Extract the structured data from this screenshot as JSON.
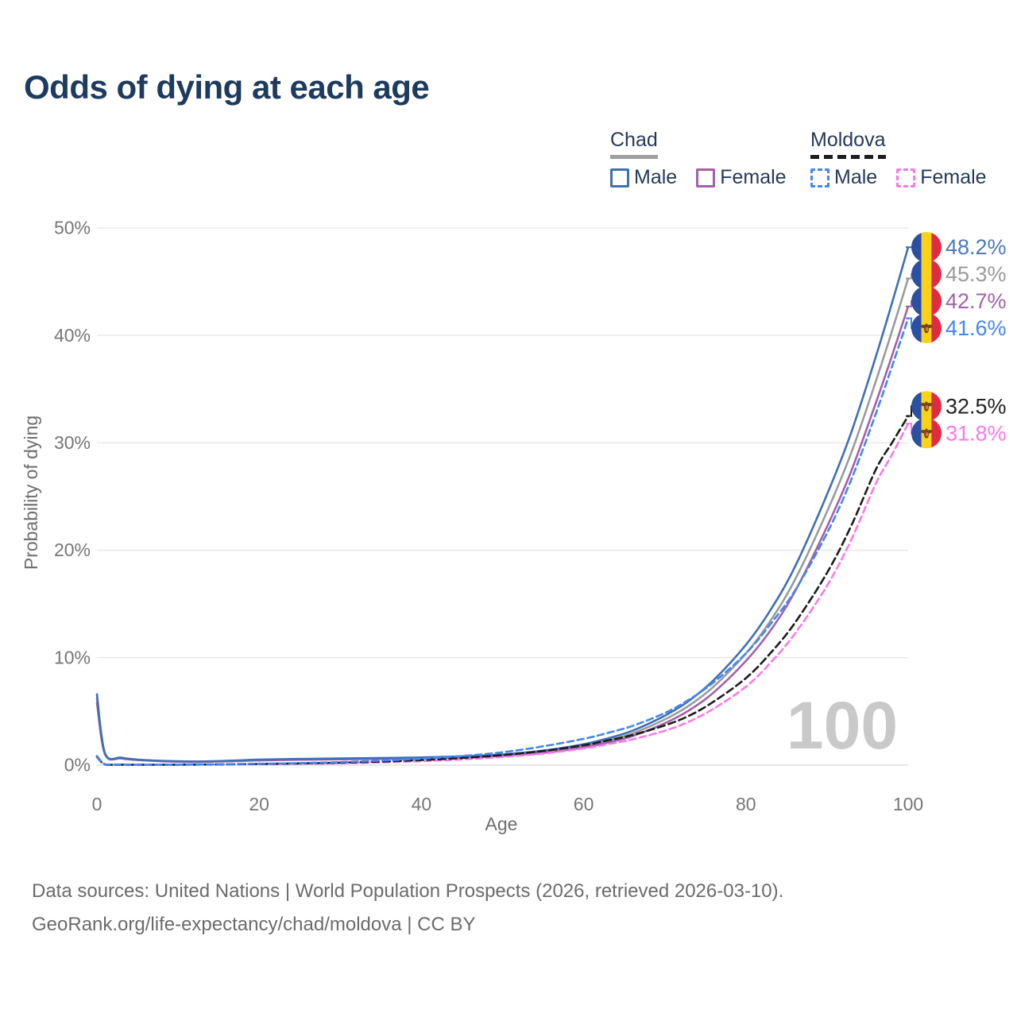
{
  "title": "Odds of dying at each age",
  "watermark": "100",
  "legend": {
    "groups": [
      {
        "label": "Chad",
        "underline": {
          "color": "#9e9e9e",
          "style": "solid"
        },
        "items": [
          {
            "label": "Male",
            "color": "#3f6fb5",
            "line_style": "solid"
          },
          {
            "label": "Female",
            "color": "#a261aa",
            "line_style": "solid"
          }
        ]
      },
      {
        "label": "Moldova",
        "underline": {
          "color": "#1c1c1c",
          "style": "dashed"
        },
        "items": [
          {
            "label": "Male",
            "color": "#4386f0",
            "line_style": "dashed"
          },
          {
            "label": "Female",
            "color": "#fa78ea",
            "line_style": "dashed"
          }
        ]
      }
    ]
  },
  "axes": {
    "y_title": "Probability of dying",
    "x_title": "Age"
  },
  "footer": {
    "line1": "Data sources: United Nations | World Population Prospects (2026, retrieved 2026-03-10).",
    "line2": "GeoRank.org/life-expectancy/chad/moldova | CC BY"
  },
  "chart_data": {
    "type": "line",
    "title": "Odds of dying at each age",
    "xlabel": "Age",
    "ylabel": "Probability of dying",
    "xlim": [
      0,
      100
    ],
    "ylim": [
      0,
      50
    ],
    "xticks": [
      0,
      20,
      40,
      60,
      80,
      100
    ],
    "xtick_labels": [
      "0",
      "20",
      "40",
      "60",
      "80",
      "100"
    ],
    "yticks": [
      0,
      10,
      20,
      30,
      40,
      50
    ],
    "ytick_labels": [
      "0%",
      "10%",
      "20%",
      "30%",
      "40%",
      "50%"
    ],
    "grid": "horizontal-only",
    "legend_position": "top-right",
    "series": [
      {
        "id": "chad-all",
        "country": "Chad",
        "sex": "both",
        "name": "Chad — Both sexes",
        "color": "#9b9b9b",
        "line_style": "solid",
        "end_label": {
          "text": "45.3%",
          "color": "#9b9b9b",
          "flag": "chad"
        },
        "points": [
          [
            0,
            6.2
          ],
          [
            1,
            1.05
          ],
          [
            3,
            0.66
          ],
          [
            5,
            0.5
          ],
          [
            8,
            0.38
          ],
          [
            10,
            0.34
          ],
          [
            12,
            0.32
          ],
          [
            15,
            0.36
          ],
          [
            18,
            0.43
          ],
          [
            20,
            0.48
          ],
          [
            25,
            0.54
          ],
          [
            30,
            0.58
          ],
          [
            35,
            0.62
          ],
          [
            40,
            0.68
          ],
          [
            45,
            0.77
          ],
          [
            50,
            0.93
          ],
          [
            55,
            1.25
          ],
          [
            60,
            1.8
          ],
          [
            63,
            2.3
          ],
          [
            66,
            2.95
          ],
          [
            70,
            4.25
          ],
          [
            73,
            5.55
          ],
          [
            76,
            7.3
          ],
          [
            80,
            10.4
          ],
          [
            83,
            13.4
          ],
          [
            86,
            17.2
          ],
          [
            90,
            23.6
          ],
          [
            93,
            29.1
          ],
          [
            96,
            35.7
          ],
          [
            98,
            40.4
          ],
          [
            100,
            45.3
          ]
        ]
      },
      {
        "id": "chad-female",
        "country": "Chad",
        "sex": "female",
        "name": "Chad — Female",
        "color": "#a261aa",
        "line_style": "solid",
        "end_label": {
          "text": "42.7%",
          "color": "#a261aa",
          "flag": "chad"
        },
        "points": [
          [
            0,
            5.8
          ],
          [
            1,
            1.0
          ],
          [
            3,
            0.62
          ],
          [
            5,
            0.47
          ],
          [
            8,
            0.36
          ],
          [
            10,
            0.32
          ],
          [
            12,
            0.3
          ],
          [
            15,
            0.33
          ],
          [
            18,
            0.39
          ],
          [
            20,
            0.44
          ],
          [
            25,
            0.5
          ],
          [
            30,
            0.54
          ],
          [
            35,
            0.58
          ],
          [
            40,
            0.64
          ],
          [
            45,
            0.72
          ],
          [
            50,
            0.87
          ],
          [
            55,
            1.15
          ],
          [
            60,
            1.65
          ],
          [
            63,
            2.1
          ],
          [
            66,
            2.7
          ],
          [
            70,
            3.9
          ],
          [
            73,
            5.1
          ],
          [
            76,
            6.75
          ],
          [
            80,
            9.7
          ],
          [
            83,
            12.5
          ],
          [
            86,
            16.1
          ],
          [
            90,
            22.2
          ],
          [
            93,
            27.4
          ],
          [
            96,
            33.7
          ],
          [
            98,
            38.1
          ],
          [
            100,
            42.7
          ]
        ]
      },
      {
        "id": "chad-male",
        "country": "Chad",
        "sex": "male",
        "name": "Chad — Male",
        "color": "#3f6fb5",
        "line_style": "solid",
        "end_label": {
          "text": "48.2%",
          "color": "#4a7ab8",
          "flag": "chad"
        },
        "points": [
          [
            0,
            6.6
          ],
          [
            1,
            1.1
          ],
          [
            3,
            0.7
          ],
          [
            5,
            0.52
          ],
          [
            8,
            0.4
          ],
          [
            10,
            0.36
          ],
          [
            12,
            0.34
          ],
          [
            15,
            0.38
          ],
          [
            18,
            0.46
          ],
          [
            20,
            0.52
          ],
          [
            25,
            0.58
          ],
          [
            30,
            0.62
          ],
          [
            35,
            0.66
          ],
          [
            40,
            0.72
          ],
          [
            45,
            0.82
          ],
          [
            50,
            1.0
          ],
          [
            55,
            1.35
          ],
          [
            60,
            1.95
          ],
          [
            63,
            2.5
          ],
          [
            66,
            3.2
          ],
          [
            70,
            4.6
          ],
          [
            73,
            6.0
          ],
          [
            76,
            7.9
          ],
          [
            80,
            11.2
          ],
          [
            83,
            14.4
          ],
          [
            86,
            18.4
          ],
          [
            90,
            25.2
          ],
          [
            93,
            31.0
          ],
          [
            96,
            38.0
          ],
          [
            98,
            43.0
          ],
          [
            100,
            48.2
          ]
        ]
      },
      {
        "id": "moldova-female",
        "country": "Moldova",
        "sex": "female",
        "name": "Moldova — Female",
        "color": "#fa78ea",
        "line_style": "dashed",
        "end_label": {
          "text": "31.8%",
          "color": "#fa78ea",
          "flag": "moldova"
        },
        "points": [
          [
            0,
            0.75
          ],
          [
            1,
            0.06
          ],
          [
            3,
            0.04
          ],
          [
            5,
            0.03
          ],
          [
            8,
            0.03
          ],
          [
            10,
            0.04
          ],
          [
            12,
            0.05
          ],
          [
            15,
            0.06
          ],
          [
            18,
            0.08
          ],
          [
            20,
            0.09
          ],
          [
            25,
            0.13
          ],
          [
            30,
            0.18
          ],
          [
            35,
            0.26
          ],
          [
            40,
            0.37
          ],
          [
            45,
            0.53
          ],
          [
            50,
            0.76
          ],
          [
            55,
            1.08
          ],
          [
            60,
            1.55
          ],
          [
            63,
            1.95
          ],
          [
            66,
            2.4
          ],
          [
            70,
            3.2
          ],
          [
            73,
            4.05
          ],
          [
            76,
            5.25
          ],
          [
            80,
            7.3
          ],
          [
            83,
            9.5
          ],
          [
            86,
            12.2
          ],
          [
            90,
            16.7
          ],
          [
            93,
            21.0
          ],
          [
            96,
            26.2
          ],
          [
            98,
            28.9
          ],
          [
            100,
            31.8
          ]
        ]
      },
      {
        "id": "moldova-all",
        "country": "Moldova",
        "sex": "both",
        "name": "Moldova — Both sexes",
        "color": "#1c1c1c",
        "line_style": "dashed",
        "end_label": {
          "text": "32.5%",
          "color": "#222222",
          "flag": "moldova"
        },
        "points": [
          [
            0,
            0.8
          ],
          [
            1,
            0.07
          ],
          [
            3,
            0.045
          ],
          [
            5,
            0.035
          ],
          [
            8,
            0.035
          ],
          [
            10,
            0.045
          ],
          [
            12,
            0.055
          ],
          [
            15,
            0.07
          ],
          [
            18,
            0.095
          ],
          [
            20,
            0.11
          ],
          [
            25,
            0.16
          ],
          [
            30,
            0.23
          ],
          [
            35,
            0.33
          ],
          [
            40,
            0.47
          ],
          [
            45,
            0.66
          ],
          [
            50,
            0.93
          ],
          [
            55,
            1.32
          ],
          [
            60,
            1.85
          ],
          [
            63,
            2.3
          ],
          [
            66,
            2.8
          ],
          [
            70,
            3.7
          ],
          [
            73,
            4.6
          ],
          [
            76,
            5.9
          ],
          [
            80,
            8.1
          ],
          [
            83,
            10.4
          ],
          [
            86,
            13.2
          ],
          [
            90,
            17.9
          ],
          [
            93,
            22.3
          ],
          [
            96,
            27.5
          ],
          [
            98,
            30.0
          ],
          [
            100,
            32.5
          ]
        ]
      },
      {
        "id": "moldova-male",
        "country": "Moldova",
        "sex": "male",
        "name": "Moldova — Male",
        "color": "#4386f0",
        "line_style": "dashed",
        "end_label": {
          "text": "41.6%",
          "color": "#4386f0",
          "flag": "moldova"
        },
        "points": [
          [
            0,
            0.85
          ],
          [
            1,
            0.08
          ],
          [
            3,
            0.05
          ],
          [
            5,
            0.04
          ],
          [
            8,
            0.04
          ],
          [
            10,
            0.05
          ],
          [
            12,
            0.06
          ],
          [
            15,
            0.08
          ],
          [
            18,
            0.11
          ],
          [
            20,
            0.13
          ],
          [
            25,
            0.19
          ],
          [
            30,
            0.28
          ],
          [
            35,
            0.42
          ],
          [
            40,
            0.6
          ],
          [
            45,
            0.85
          ],
          [
            50,
            1.2
          ],
          [
            55,
            1.75
          ],
          [
            60,
            2.45
          ],
          [
            63,
            3.0
          ],
          [
            66,
            3.65
          ],
          [
            70,
            4.85
          ],
          [
            73,
            6.1
          ],
          [
            76,
            7.7
          ],
          [
            80,
            10.4
          ],
          [
            83,
            13.1
          ],
          [
            86,
            16.2
          ],
          [
            90,
            21.6
          ],
          [
            93,
            26.6
          ],
          [
            96,
            32.7
          ],
          [
            98,
            37.1
          ],
          [
            100,
            41.6
          ]
        ]
      }
    ],
    "flag_colors": {
      "chad": {
        "stripes": [
          "#2b4fa2",
          "#fcd116",
          "#de2c43"
        ]
      },
      "moldova": {
        "stripes": [
          "#2b4fa2",
          "#fcd116",
          "#de2c43"
        ],
        "emblem": "#6f451e",
        "emblem_shield": "#e8973c",
        "emblem_shield2": "#d2343c"
      }
    }
  }
}
